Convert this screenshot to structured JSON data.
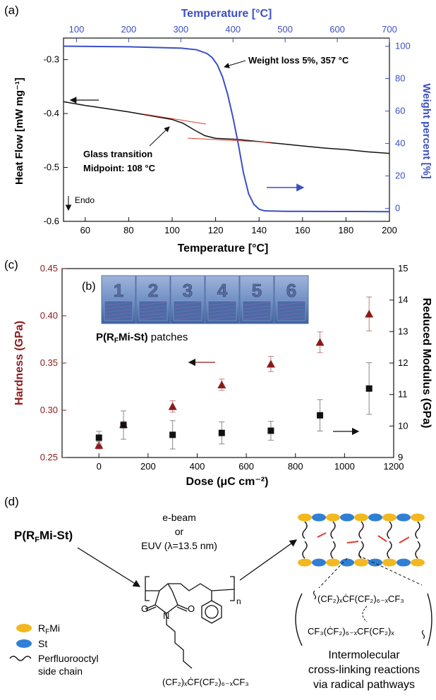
{
  "colors": {
    "blue": "#3b4fc4",
    "darkred": "#8b1a1a",
    "tan": "#8a1c1c",
    "yellow": "#f2b81e",
    "lightblue": "#2f7fd6",
    "red_line": "#e03a2e",
    "black": "#111111"
  },
  "panel_a": {
    "label": "(a)",
    "top_xlabel": "Temperature [°C]",
    "bottom_xlabel": "Temperature [°C]",
    "left_ylabel": "Heat Flow [mW mg⁻¹]",
    "right_ylabel": "Weight percent [%]",
    "annotations": {
      "weight_loss": "Weight loss 5%, 357 °C",
      "glass_transition_line1": "Glass transition",
      "glass_transition_line2": "Midpoint: 108 °C",
      "endo": "Endo"
    }
  },
  "panel_c": {
    "label": "(c)",
    "xlabel": "Dose (μC cm⁻²)",
    "left_ylabel": "Hardness (GPa)",
    "right_ylabel": "Reduced Modulus (GPa)"
  },
  "panel_b": {
    "label": "(b)",
    "patch_numbers": [
      "1",
      "2",
      "3",
      "4",
      "5",
      "6"
    ],
    "caption_bold": "P(R",
    "caption_sub": "F",
    "caption_bold2": "Mi-St)",
    "caption_rest": " patches"
  },
  "panel_d": {
    "label": "(d)",
    "polymer_name_main": "P(R",
    "polymer_name_sub": "F",
    "polymer_name_end": "Mi-St)",
    "conditions": [
      "e-beam",
      "or",
      "EUV (λ=13.5 nm)"
    ],
    "legend": {
      "rfmi_main": "R",
      "rfmi_sub": "F",
      "rfmi_end": "Mi",
      "st": "St",
      "chain_line1": "Perfluorooctyl",
      "chain_line2": "side chain"
    },
    "structure": {
      "n": "n",
      "O_left": "O",
      "O_right": "O",
      "N": "N",
      "sidechain": "(CF₂)ₓĊF(CF₂)₆₋ₓCF₃"
    },
    "radical1": "(CF₂)ₓĊF(CF₂)₆₋ₓCF₃",
    "radical2": "CF₃(ĊF₂)₆₋ₓCF(CF₂)ₓ",
    "caption": [
      "Intermolecular",
      "cross-linking reactions",
      "via radical pathways"
    ]
  },
  "chart_data": [
    {
      "type": "line",
      "panel": "a",
      "title": "",
      "xlabel": "Temperature [°C]",
      "x2label": "Temperature [°C]",
      "ylabel": "Heat Flow [mW mg⁻¹]",
      "y2label": "Weight percent [%]",
      "xlim": [
        50,
        200
      ],
      "x_ticks": [
        60,
        80,
        100,
        120,
        140,
        160,
        180,
        200
      ],
      "x2lim": [
        75,
        700
      ],
      "x2_ticks": [
        100,
        200,
        300,
        400,
        500,
        600,
        700
      ],
      "ylim": [
        -0.6,
        -0.26
      ],
      "y_ticks": [
        -0.3,
        -0.4,
        -0.5,
        -0.6
      ],
      "y2lim": [
        -8,
        105
      ],
      "y2_ticks": [
        0,
        20,
        40,
        60,
        80,
        100
      ],
      "series": [
        {
          "name": "",
          "axis": "left",
          "color": "black",
          "x": [
            50,
            60,
            70,
            80,
            90,
            100,
            105,
            110,
            115,
            120,
            125,
            130,
            140,
            150,
            160,
            170,
            180,
            190,
            200
          ],
          "y": [
            -0.378,
            -0.385,
            -0.391,
            -0.397,
            -0.404,
            -0.411,
            -0.418,
            -0.43,
            -0.441,
            -0.446,
            -0.447,
            -0.448,
            -0.452,
            -0.456,
            -0.46,
            -0.464,
            -0.467,
            -0.471,
            -0.474
          ]
        },
        {
          "name": "",
          "axis": "right",
          "color": "blue",
          "x2": [
            75,
            200,
            300,
            330,
            350,
            360,
            370,
            380,
            390,
            400,
            410,
            420,
            430,
            440,
            450,
            460,
            500,
            600,
            700
          ],
          "y": [
            100,
            99.6,
            98.8,
            97.8,
            95.5,
            93,
            88.5,
            81,
            70,
            56,
            40,
            22,
            9,
            2.5,
            -0.5,
            -1.5,
            -1.8,
            -1.9,
            -2.0
          ]
        }
      ]
    },
    {
      "type": "scatter",
      "panel": "c",
      "title": "",
      "xlabel": "Dose (μC cm⁻²)",
      "ylabel": "Hardness (GPa)",
      "y2label": "Reduced Modulus (GPa)",
      "xlim": [
        -150,
        1200
      ],
      "x_ticks": [
        0,
        200,
        400,
        600,
        800,
        1000,
        1200
      ],
      "ylim": [
        0.25,
        0.45
      ],
      "y_ticks": [
        0.25,
        0.3,
        0.35,
        0.4,
        0.45
      ],
      "y2lim": [
        9,
        15
      ],
      "y2_ticks": [
        9,
        10,
        11,
        12,
        13,
        14,
        15
      ],
      "series": [
        {
          "name": "",
          "axis": "left",
          "marker": "triangle",
          "color": "darkred",
          "x": [
            0,
            100,
            300,
            500,
            700,
            900,
            1100
          ],
          "y": [
            0.263,
            0.285,
            0.304,
            0.327,
            0.349,
            0.372,
            0.402
          ],
          "err": [
            0.004,
            0.003,
            0.006,
            0.006,
            0.008,
            0.011,
            0.018
          ]
        },
        {
          "name": "",
          "axis": "right",
          "marker": "square",
          "color": "black",
          "x": [
            0,
            100,
            300,
            500,
            700,
            900,
            1100
          ],
          "y": [
            9.63,
            10.03,
            9.72,
            9.78,
            9.85,
            10.34,
            11.19
          ],
          "err": [
            0.2,
            0.45,
            0.45,
            0.35,
            0.3,
            0.5,
            0.82
          ]
        }
      ]
    }
  ]
}
